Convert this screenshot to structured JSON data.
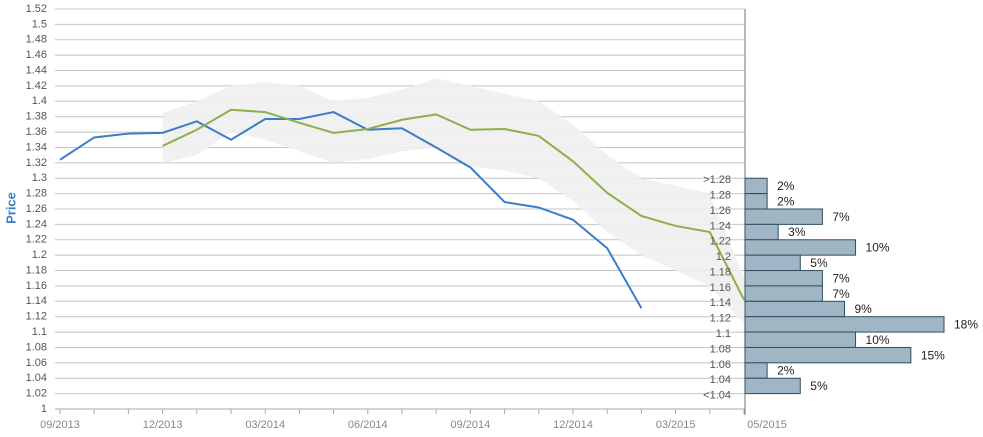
{
  "chart_data": [
    {
      "type": "line",
      "y_label": "Price",
      "categories": [
        "09/2013",
        null,
        null,
        "12/2013",
        null,
        null,
        "03/2014",
        null,
        null,
        "06/2014",
        null,
        null,
        "09/2014",
        null,
        null,
        "12/2014",
        null,
        null,
        "03/2015",
        null,
        "05/2015"
      ],
      "ylim": [
        1,
        1.52
      ],
      "yticks": [
        1,
        1.02,
        1.04,
        1.06,
        1.08,
        1.1,
        1.12,
        1.14,
        1.16,
        1.18,
        1.2,
        1.22,
        1.24,
        1.26,
        1.28,
        1.3,
        1.32,
        1.34,
        1.36,
        1.38,
        1.4,
        1.42,
        1.44,
        1.46,
        1.48,
        1.5,
        1.52
      ],
      "grid": true,
      "band": {
        "color": "#efefef",
        "upper": [
          null,
          null,
          null,
          1.385,
          1.4,
          1.42,
          1.425,
          1.42,
          1.4,
          1.405,
          1.415,
          1.43,
          1.42,
          1.41,
          1.4,
          1.37,
          1.33,
          1.3,
          1.29,
          1.28,
          1.17
        ],
        "lower": [
          null,
          null,
          null,
          1.32,
          1.33,
          1.36,
          1.35,
          1.335,
          1.32,
          1.325,
          1.335,
          1.34,
          1.315,
          1.31,
          1.3,
          1.27,
          1.23,
          1.2,
          1.18,
          1.16,
          1.11
        ]
      },
      "series": [
        {
          "color": "#3a7dc9",
          "values": [
            1.324,
            1.353,
            1.358,
            1.359,
            1.374,
            1.35,
            1.377,
            1.377,
            1.386,
            1.363,
            1.365,
            1.34,
            1.314,
            1.269,
            1.262,
            1.246,
            1.209,
            1.131,
            null,
            null,
            null
          ]
        },
        {
          "color": "#8db04a",
          "values": [
            null,
            null,
            null,
            1.342,
            1.363,
            1.389,
            1.386,
            1.372,
            1.359,
            1.364,
            1.376,
            1.383,
            1.363,
            1.364,
            1.355,
            1.322,
            1.281,
            1.251,
            1.238,
            1.23,
            1.142
          ]
        }
      ]
    },
    {
      "type": "histogram",
      "orientation": "horizontal",
      "color": "#a0b6c4",
      "bins": [
        {
          "value": 1.3,
          "label": ">1.28"
        },
        1.28,
        1.26,
        1.24,
        1.22,
        1.2,
        1.18,
        1.16,
        1.14,
        1.12,
        1.1,
        1.08,
        1.06,
        1.04,
        {
          "value": 1.02,
          "label": "<1.04"
        }
      ],
      "values": [
        2,
        2,
        7,
        3,
        10,
        5,
        7,
        7,
        9,
        18,
        10,
        15,
        2,
        5
      ],
      "value_labels": [
        "2%",
        "2%",
        "7%",
        "3%",
        "10%",
        "5%",
        "7%",
        "7%",
        "9%",
        "18%",
        "10%",
        "15%",
        "2%",
        "5%"
      ],
      "xlim": [
        0,
        18
      ]
    }
  ]
}
